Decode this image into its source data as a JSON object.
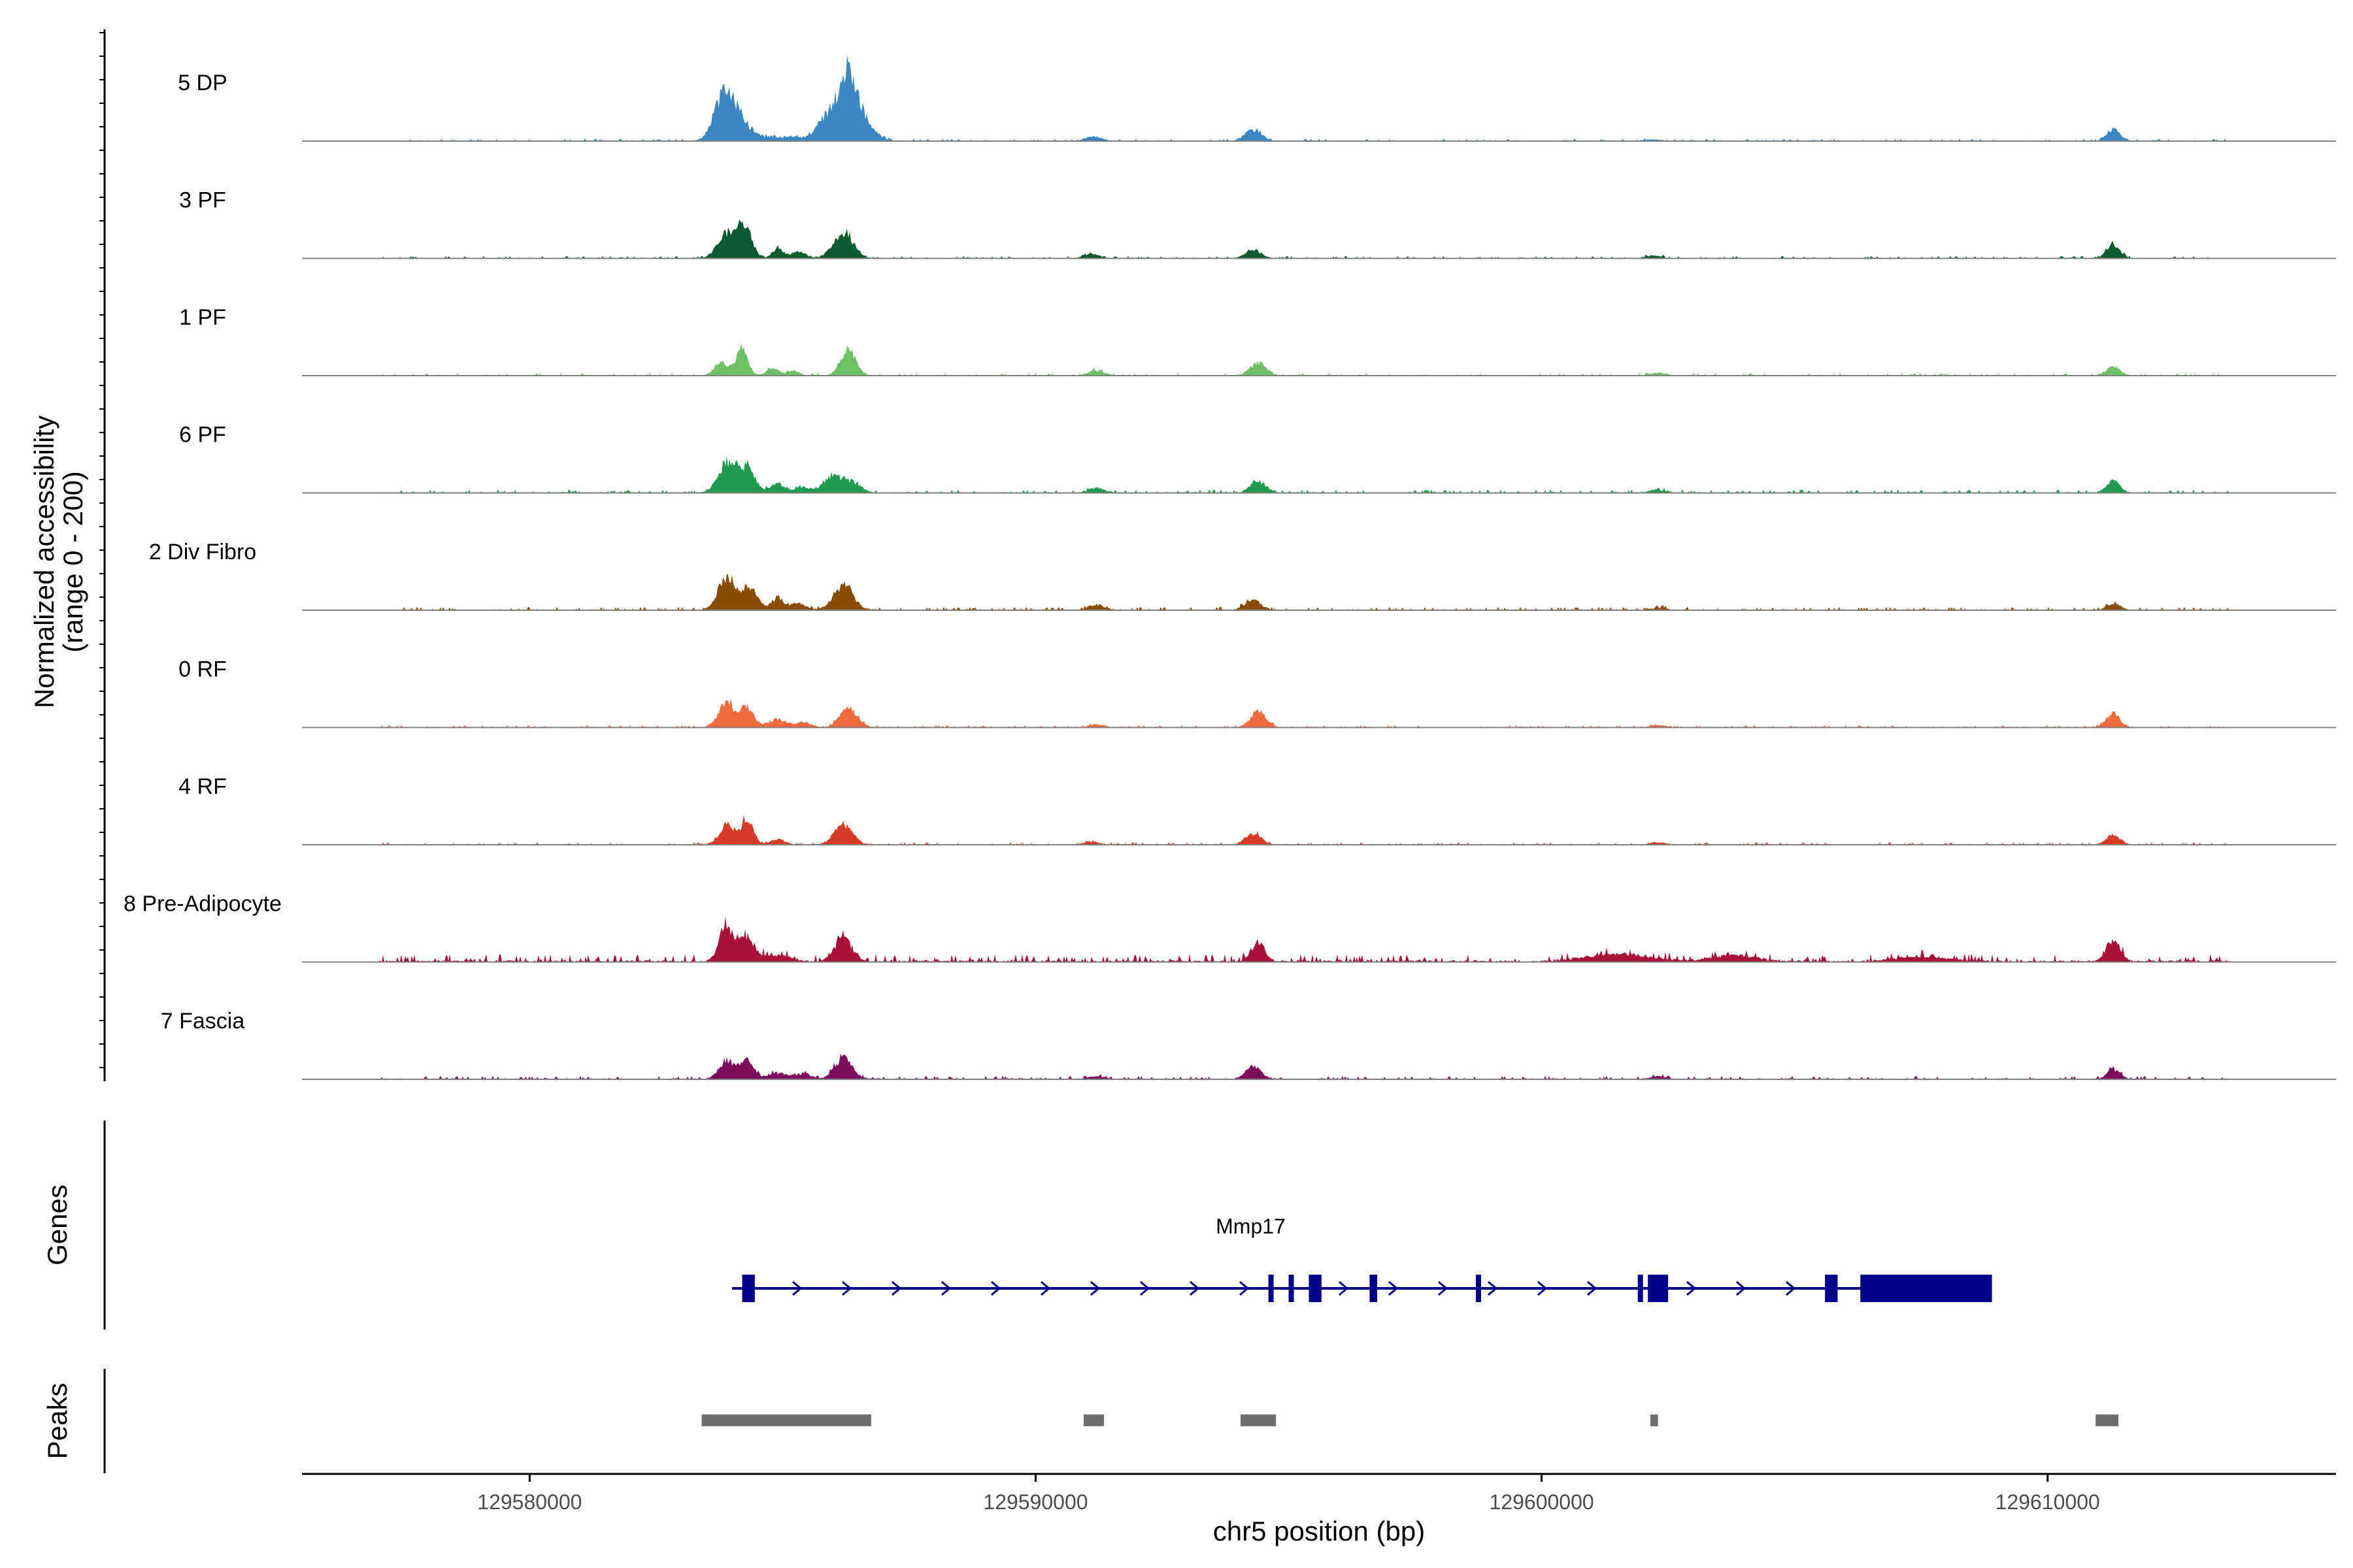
{
  "chart_data": {
    "type": "area",
    "title": "",
    "region": {
      "chrom": "chr5",
      "start": 129575500,
      "end": 129615700
    },
    "xlabel": "chr5 position (bp)",
    "ylabel": "Normalized accessibility",
    "ylabel_range": "(range 0 - 200)",
    "ylim": [
      0,
      200
    ],
    "x_ticks": [
      {
        "value": 129580000,
        "label": "129580000"
      },
      {
        "value": 129590000,
        "label": "129590000"
      },
      {
        "value": 129600000,
        "label": "129600000"
      },
      {
        "value": 129610000,
        "label": "129610000"
      }
    ],
    "series": [
      {
        "name": "5 DP",
        "color": "#3a87c4",
        "baseline_noise": 2,
        "peaks": [
          [
            129584000,
            70,
            220
          ],
          [
            129583750,
            45,
            160
          ],
          [
            129584450,
            10,
            120
          ],
          [
            129584800,
            9,
            150
          ],
          [
            129585200,
            8,
            140
          ],
          [
            129586300,
            125,
            170
          ],
          [
            129585900,
            50,
            220
          ],
          [
            129586650,
            30,
            200
          ],
          [
            129591150,
            8,
            150
          ],
          [
            129594300,
            22,
            160
          ],
          [
            129602200,
            3,
            150
          ],
          [
            129611300,
            22,
            130
          ]
        ]
      },
      {
        "name": "3 PF",
        "color": "#0a5c2e",
        "baseline_noise": 2,
        "peaks": [
          [
            129583900,
            45,
            180
          ],
          [
            129584250,
            58,
            140
          ],
          [
            129584900,
            18,
            100
          ],
          [
            129585300,
            12,
            150
          ],
          [
            129586200,
            50,
            190
          ],
          [
            129591100,
            8,
            150
          ],
          [
            129594300,
            16,
            150
          ],
          [
            129602200,
            5,
            150
          ],
          [
            129611300,
            25,
            130
          ]
        ]
      },
      {
        "name": "1 PF",
        "color": "#6ebf65",
        "baseline_noise": 2,
        "peaks": [
          [
            129583800,
            25,
            140
          ],
          [
            129584200,
            52,
            110
          ],
          [
            129584800,
            13,
            120
          ],
          [
            129585200,
            9,
            120
          ],
          [
            129586300,
            48,
            150
          ],
          [
            129591200,
            10,
            150
          ],
          [
            129594400,
            24,
            150
          ],
          [
            129602300,
            5,
            150
          ],
          [
            129611300,
            16,
            130
          ]
        ]
      },
      {
        "name": "6 PF",
        "color": "#1f9b4f",
        "baseline_noise": 3,
        "peaks": [
          [
            129583900,
            55,
            180
          ],
          [
            129584300,
            45,
            150
          ],
          [
            129584900,
            16,
            140
          ],
          [
            129585400,
            10,
            150
          ],
          [
            129586000,
            32,
            180
          ],
          [
            129586400,
            18,
            160
          ],
          [
            129591200,
            9,
            150
          ],
          [
            129594400,
            22,
            150
          ],
          [
            129602300,
            5,
            150
          ],
          [
            129611300,
            22,
            130
          ]
        ]
      },
      {
        "name": "2 Div Fibro",
        "color": "#8a4d00",
        "baseline_noise": 3,
        "peaks": [
          [
            129583900,
            65,
            170
          ],
          [
            129584350,
            40,
            150
          ],
          [
            129584900,
            23,
            120
          ],
          [
            129585300,
            12,
            150
          ],
          [
            129586200,
            47,
            190
          ],
          [
            129591200,
            10,
            150
          ],
          [
            129594300,
            18,
            160
          ],
          [
            129602300,
            4,
            150
          ],
          [
            129611300,
            12,
            130
          ]
        ]
      },
      {
        "name": "0 RF",
        "color": "#f06a3e",
        "baseline_noise": 2,
        "peaks": [
          [
            129583900,
            45,
            160
          ],
          [
            129584300,
            35,
            140
          ],
          [
            129584900,
            15,
            160
          ],
          [
            129585400,
            10,
            150
          ],
          [
            129586300,
            35,
            170
          ],
          [
            129591200,
            5,
            150
          ],
          [
            129594400,
            30,
            150
          ],
          [
            129602300,
            4,
            150
          ],
          [
            129611300,
            27,
            130
          ]
        ]
      },
      {
        "name": "4 RF",
        "color": "#d93a26",
        "baseline_noise": 2,
        "peaks": [
          [
            129583900,
            38,
            150
          ],
          [
            129584300,
            47,
            120
          ],
          [
            129584900,
            10,
            140
          ],
          [
            129586200,
            38,
            180
          ],
          [
            129591100,
            5,
            150
          ],
          [
            129594300,
            22,
            150
          ],
          [
            129602300,
            4,
            150
          ],
          [
            129611300,
            20,
            130
          ]
        ]
      },
      {
        "name": "8 Pre-Adipocyte",
        "color": "#a8103a",
        "baseline_noise": 7,
        "peaks": [
          [
            129583900,
            65,
            150
          ],
          [
            129584300,
            45,
            150
          ],
          [
            129584900,
            12,
            250
          ],
          [
            129586200,
            47,
            160
          ],
          [
            129594400,
            37,
            130
          ],
          [
            129611300,
            42,
            140
          ],
          [
            129601500,
            14,
            600
          ],
          [
            129603800,
            12,
            400
          ],
          [
            129607500,
            8,
            500
          ]
        ]
      },
      {
        "name": "7 Fascia",
        "color": "#7e0c5e",
        "baseline_noise": 3,
        "peaks": [
          [
            129583900,
            35,
            150
          ],
          [
            129584300,
            40,
            130
          ],
          [
            129584900,
            12,
            160
          ],
          [
            129585400,
            10,
            150
          ],
          [
            129586200,
            40,
            170
          ],
          [
            129591200,
            5,
            150
          ],
          [
            129594300,
            24,
            150
          ],
          [
            129602300,
            5,
            150
          ],
          [
            129611300,
            18,
            130
          ]
        ]
      }
    ],
    "genes_track_label": "Genes",
    "gene": {
      "name": "Mmp17",
      "strand": "+",
      "start": 129584000,
      "end": 129608900,
      "exons": [
        [
          129584200,
          129584450
        ],
        [
          129594600,
          129594700
        ],
        [
          129595000,
          129595100
        ],
        [
          129595400,
          129595650
        ],
        [
          129596600,
          129596750
        ],
        [
          129598700,
          129598800
        ],
        [
          129601900,
          129601950
        ],
        [
          129602100,
          129602500
        ],
        [
          129605600,
          129605850
        ],
        [
          129606300,
          129608900
        ]
      ]
    },
    "peaks_track_label": "Peaks",
    "peaks": [
      [
        129583400,
        129586750
      ],
      [
        129590950,
        129591350
      ],
      [
        129594050,
        129594750
      ],
      [
        129602150,
        129602300
      ],
      [
        129610950,
        129611400
      ]
    ]
  }
}
